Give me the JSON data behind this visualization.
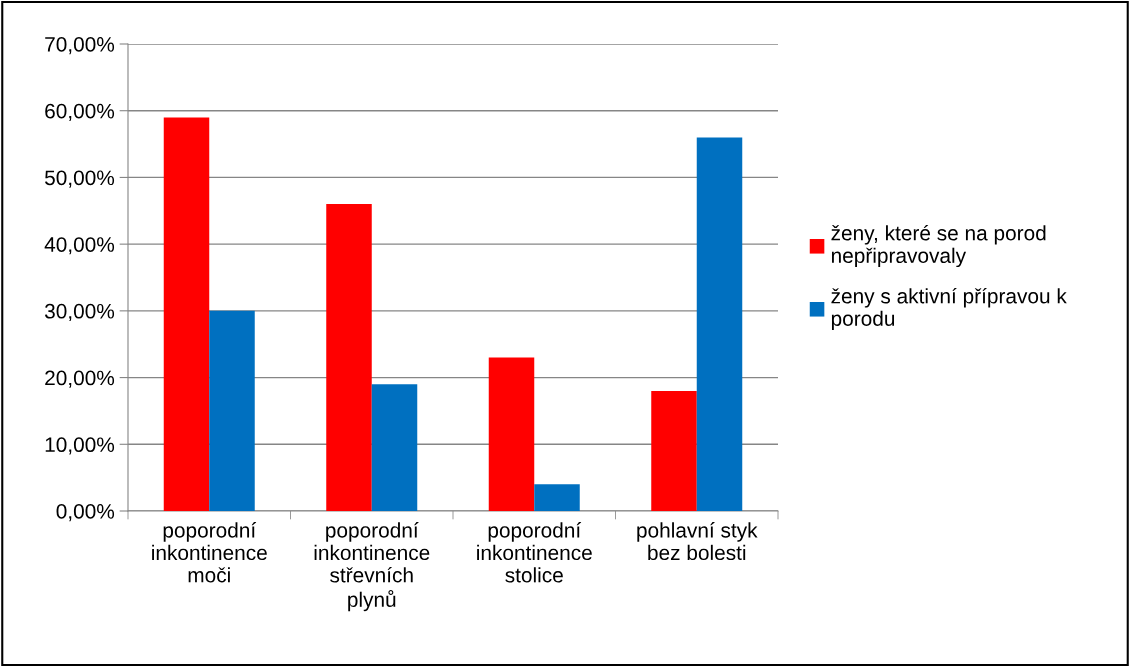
{
  "chart_data": {
    "type": "bar",
    "categories": [
      "poporodní\ninkontinence\nmoči",
      "poporodní\ninkontinence\nstřevních\nplynů",
      "poporodní\ninkontinence\nstolice",
      "pohlavní styk\nbez bolesti"
    ],
    "series": [
      {
        "name": "ženy, které se na porod\nnepřipravovaly",
        "color": "#ff0000",
        "values": [
          59,
          46,
          23,
          18
        ]
      },
      {
        "name": "ženy s aktivní přípravou k\nporodu",
        "color": "#0070c0",
        "values": [
          30,
          19,
          4,
          56
        ]
      }
    ],
    "ylim": [
      0,
      70
    ],
    "yticks": [
      {
        "value": 0,
        "label": "0,00%"
      },
      {
        "value": 10,
        "label": "10,00%"
      },
      {
        "value": 20,
        "label": "20,00%"
      },
      {
        "value": 30,
        "label": "30,00%"
      },
      {
        "value": 40,
        "label": "40,00%"
      },
      {
        "value": 50,
        "label": "50,00%"
      },
      {
        "value": 60,
        "label": "60,00%"
      },
      {
        "value": 70,
        "label": "70,00%"
      }
    ],
    "grid": "y",
    "legend": "right"
  }
}
